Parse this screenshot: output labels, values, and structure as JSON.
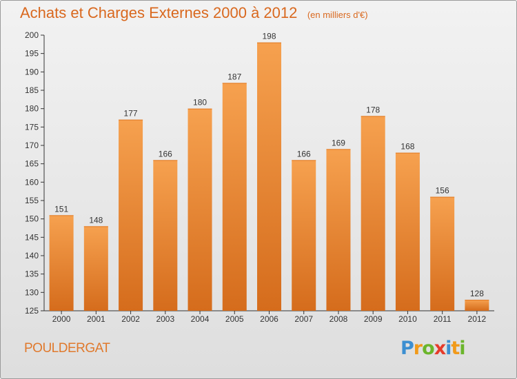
{
  "header": {
    "title": "Achats et Charges Externes 2000 à 2012",
    "unit": "(en milliers d'€)"
  },
  "footer": {
    "commune": "POULDERGAT",
    "brand": "Proxiti"
  },
  "colors": {
    "title": "#d9681e",
    "bar_light": "#f6a14f",
    "bar_dark": "#d56c1c",
    "axis": "#333333"
  },
  "chart_data": {
    "type": "bar",
    "title": "Achats et Charges Externes 2000 à 2012",
    "categories": [
      "2000",
      "2001",
      "2002",
      "2003",
      "2004",
      "2005",
      "2006",
      "2007",
      "2008",
      "2009",
      "2010",
      "2011",
      "2012"
    ],
    "values": [
      151,
      148,
      177,
      166,
      180,
      187,
      198,
      166,
      169,
      178,
      168,
      156,
      128
    ],
    "ylim": [
      125,
      200
    ],
    "yticks": [
      125,
      130,
      135,
      140,
      145,
      150,
      155,
      160,
      165,
      170,
      175,
      180,
      185,
      190,
      195,
      200
    ],
    "grid": false,
    "data_labels": true
  }
}
